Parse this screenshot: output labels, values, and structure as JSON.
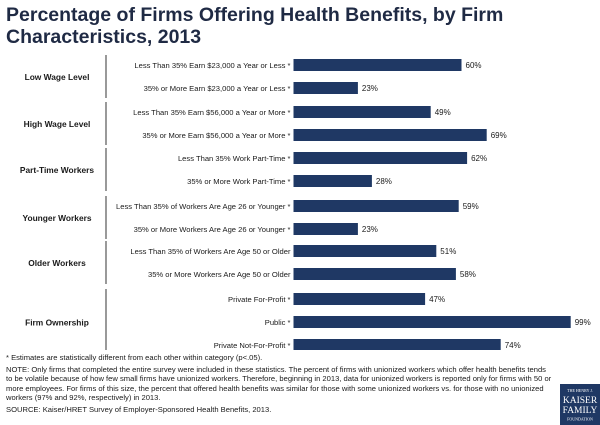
{
  "title": "Percentage of Firms Offering Health Benefits, by Firm Characteristics, 2013",
  "chart_data": {
    "type": "bar",
    "orientation": "horizontal",
    "unit": "%",
    "xlim": [
      0,
      100
    ],
    "bar_color": "#1f3864",
    "groups": [
      {
        "name": "Low Wage Level",
        "bars": [
          {
            "label": "Less Than 35% Earn $23,000 a Year or Less *",
            "value": 60,
            "value_label": "60%"
          },
          {
            "label": "35% or More Earn $23,000 a Year or Less *",
            "value": 23,
            "value_label": "23%"
          }
        ]
      },
      {
        "name": "High Wage Level",
        "bars": [
          {
            "label": "Less Than 35% Earn $56,000 a Year or More *",
            "value": 49,
            "value_label": "49%"
          },
          {
            "label": "35% or More Earn $56,000 a Year or More *",
            "value": 69,
            "value_label": "69%"
          }
        ]
      },
      {
        "name": "Part-Time Workers",
        "bars": [
          {
            "label": "Less Than 35% Work Part-Time *",
            "value": 62,
            "value_label": "62%"
          },
          {
            "label": "35% or More Work Part-Time *",
            "value": 28,
            "value_label": "28%"
          }
        ]
      },
      {
        "name": "Younger Workers",
        "bars": [
          {
            "label": "Less Than 35% of Workers Are Age 26 or Younger *",
            "value": 59,
            "value_label": "59%"
          },
          {
            "label": "35% or More Workers Are Age 26 or Younger *",
            "value": 23,
            "value_label": "23%"
          }
        ]
      },
      {
        "name": "Older Workers",
        "bars": [
          {
            "label": "Less Than 35% of Workers Are Age 50 or Older",
            "value": 51,
            "value_label": "51%"
          },
          {
            "label": "35% or More Workers Are Age 50 or Older",
            "value": 58,
            "value_label": "58%"
          }
        ]
      },
      {
        "name": "Firm Ownership",
        "bars": [
          {
            "label": "Private For-Profit *",
            "value": 47,
            "value_label": "47%"
          },
          {
            "label": "Public *",
            "value": 99,
            "value_label": "99%"
          },
          {
            "label": "Private Not-For-Profit *",
            "value": 74,
            "value_label": "74%"
          }
        ]
      }
    ]
  },
  "footnotes": {
    "significance": "* Estimates are statistically different from each other within category (p<.05).",
    "note": "NOTE: Only firms that completed the entire survey were included in these statistics. The percent of firms with unionized workers which offer health benefits tends to be volatile because of how few small firms have unionized workers. Therefore, beginning in 2013, data for unionized workers is reported only for firms with 50 or more employees. For firms of this size, the percent that offered health benefits was similar for those with some unionized workers vs. for those with no unionized workers (97% and 92%, respectively) in 2013.",
    "source": "SOURCE: Kaiser/HRET Survey of Employer-Sponsored Health Benefits, 2013."
  },
  "logo": {
    "line1": "THE HENRY J.",
    "line2": "KAISER",
    "line3": "FAMILY",
    "line4": "FOUNDATION",
    "color": "#1f3864"
  }
}
